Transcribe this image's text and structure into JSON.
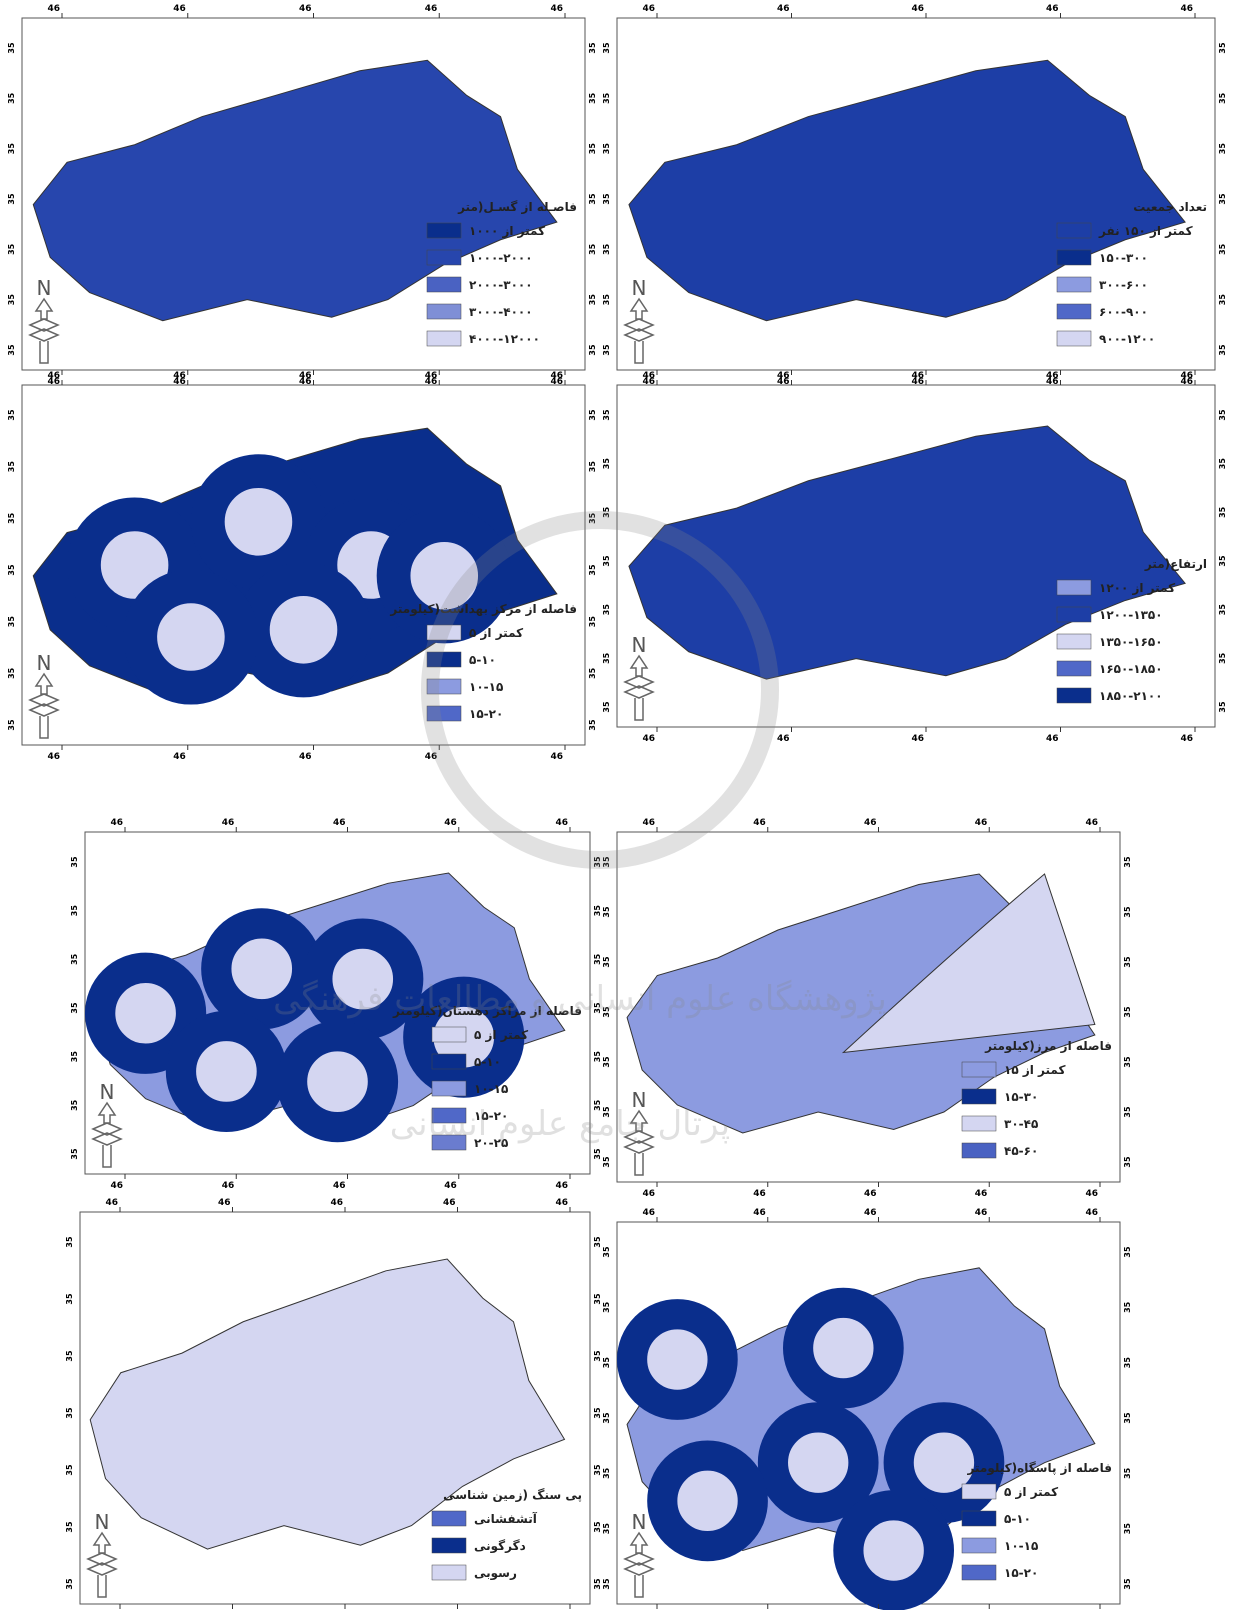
{
  "coordinate_labels": {
    "longitude": "46",
    "latitude": "35"
  },
  "north": "N",
  "watermark": [
    "پژوهشگاه علوم انسانی و مطالعات فرهنگی",
    "پرتال جامع علوم انسانی"
  ],
  "panels": [
    {
      "legend": {
        "title": "فاصـله از گسـل(متر",
        "items": [
          {
            "label": "کمتر از ۱۰۰۰",
            "color": "#0a2e8c"
          },
          {
            "label": "۱۰۰۰-۲۰۰۰",
            "color": "#2746ad"
          },
          {
            "label": "۲۰۰۰-۳۰۰۰",
            "color": "#4a62c2"
          },
          {
            "label": "۳۰۰۰-۴۰۰۰",
            "color": "#7f8fd6"
          },
          {
            "label": "۴۰۰۰-۱۲۰۰۰",
            "color": "#d4d6f1"
          }
        ]
      }
    },
    {
      "legend": {
        "title": "تعداد جمعیت",
        "items": [
          {
            "label": "کمتر از ۱۵۰ نفر",
            "color": "#1d3ea6"
          },
          {
            "label": "۱۵۰-۳۰۰",
            "color": "#0a2e8c"
          },
          {
            "label": "۳۰۰-۶۰۰",
            "color": "#8c9be0"
          },
          {
            "label": "۶۰۰-۹۰۰",
            "color": "#5068c8"
          },
          {
            "label": "۹۰۰-۱۲۰۰",
            "color": "#d4d6f1"
          }
        ]
      }
    },
    {
      "legend": {
        "title": "فاصله از مرکز بهداشت(کیلومتر",
        "items": [
          {
            "label": "کمتر از ۵",
            "color": "#d4d6f1"
          },
          {
            "label": "۵-۱۰",
            "color": "#0a2e8c"
          },
          {
            "label": "۱۰-۱۵",
            "color": "#8c9be0"
          },
          {
            "label": "۱۵-۲۰",
            "color": "#5068c8"
          }
        ]
      }
    },
    {
      "legend": {
        "title": "ارتفاع(متر",
        "items": [
          {
            "label": "کمتر از ۱۲۰۰",
            "color": "#8c9be0"
          },
          {
            "label": "۱۲۰۰-۱۳۵۰",
            "color": "#1d3ea6"
          },
          {
            "label": "۱۳۵۰-۱۶۵۰",
            "color": "#d4d6f1"
          },
          {
            "label": "۱۶۵۰-۱۸۵۰",
            "color": "#5068c8"
          },
          {
            "label": "۱۸۵۰-۲۱۰۰",
            "color": "#0a2e8c"
          }
        ]
      }
    },
    {
      "legend": {
        "title": "فاصله از مراکز دهستان(کیلومتر",
        "items": [
          {
            "label": "کمتر از ۵",
            "color": "#d4d6f1"
          },
          {
            "label": "۵-۱۰",
            "color": "#0a2e8c"
          },
          {
            "label": "۱۰-۱۵",
            "color": "#8c9be0"
          },
          {
            "label": "۱۵-۲۰",
            "color": "#5068c8"
          },
          {
            "label": "۲۰-۲۵",
            "color": "#6a7ccf"
          }
        ]
      }
    },
    {
      "legend": {
        "title": "فاصله از مرز(کیلومتر",
        "items": [
          {
            "label": "کمتر از ۱۵",
            "color": "#8c9be0"
          },
          {
            "label": "۱۵-۳۰",
            "color": "#0a2e8c"
          },
          {
            "label": "۳۰-۴۵",
            "color": "#d4d6f1"
          },
          {
            "label": "۴۵-۶۰",
            "color": "#4a62c2"
          }
        ]
      }
    },
    {
      "legend": {
        "title": "پی سنگ (زمین شناسی",
        "items": [
          {
            "label": "آتشفشانی",
            "color": "#5068c8"
          },
          {
            "label": "دگرگونی",
            "color": "#0a2e8c"
          },
          {
            "label": "رسوبی",
            "color": "#d4d6f1"
          }
        ]
      }
    },
    {
      "legend": {
        "title": "فاصله از پاسگاه(کیلومتر",
        "items": [
          {
            "label": "کمتر از ۵",
            "color": "#d4d6f1"
          },
          {
            "label": "۵-۱۰",
            "color": "#0a2e8c"
          },
          {
            "label": "۱۰-۱۵",
            "color": "#8c9be0"
          },
          {
            "label": "۱۵-۲۰",
            "color": "#5068c8"
          }
        ]
      }
    }
  ]
}
